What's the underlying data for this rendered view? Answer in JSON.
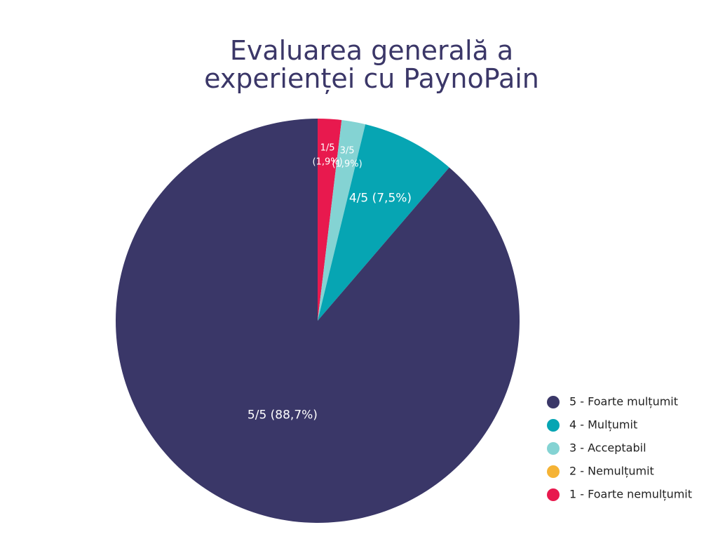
{
  "chart_data": {
    "type": "pie",
    "title": "Evaluarea generală a experienței cu PaynoPain",
    "categories": [
      "5 - Foarte mulțumit",
      "4 - Mulțumit",
      "3 - Acceptabil",
      "2 - Nemulțumit",
      "1 - Foarte nemulțumit"
    ],
    "values": [
      88.7,
      7.5,
      1.9,
      0,
      1.9
    ],
    "value_labels": [
      "5/5 (88,7%)",
      "4/5 (7,5%)",
      "3/5 (1,9%)",
      null,
      "1/5 (1,9%)"
    ],
    "colors": [
      "#3a3768",
      "#06a5b3",
      "#84d3d3",
      "#f5b335",
      "#e8194e"
    ],
    "legend": "bottom-right"
  }
}
